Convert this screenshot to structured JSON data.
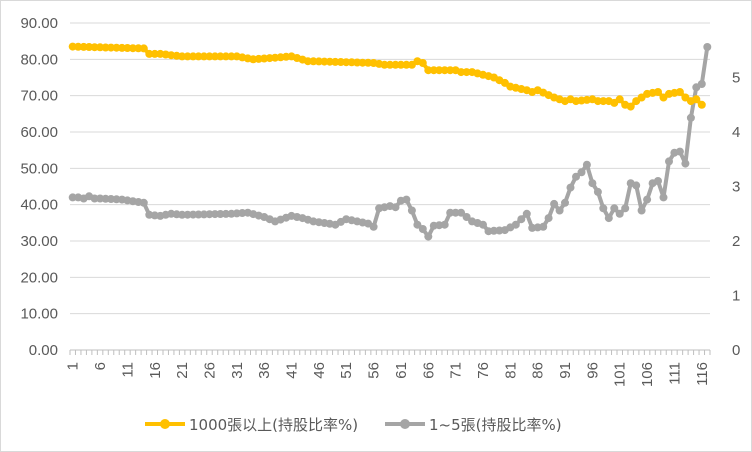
{
  "chart_data": {
    "type": "line",
    "title": "",
    "xlabel": "",
    "ylabel": "",
    "x_tick_labels": [
      "1",
      "6",
      "11",
      "16",
      "21",
      "26",
      "31",
      "36",
      "41",
      "46",
      "51",
      "56",
      "61",
      "66",
      "71",
      "76",
      "81",
      "86",
      "91",
      "96",
      "101",
      "106",
      "111",
      "116"
    ],
    "left_axis": {
      "ticks": [
        "0.00",
        "10.00",
        "20.00",
        "30.00",
        "40.00",
        "50.00",
        "60.00",
        "70.00",
        "80.00",
        "90.00"
      ],
      "ylim": [
        0,
        90
      ]
    },
    "right_axis": {
      "ticks": [
        "0",
        "1",
        "2",
        "3",
        "4",
        "5"
      ],
      "ylim": [
        0,
        6
      ]
    },
    "gridlines": true,
    "legend_position": "bottom",
    "series": [
      {
        "name": "1000張以上(持股比率%)",
        "axis": "left",
        "color": "#FFC000",
        "values_keypoints": [
          [
            1,
            83.5
          ],
          [
            14,
            83.0
          ],
          [
            15,
            81.5
          ],
          [
            17,
            81.5
          ],
          [
            21,
            80.8
          ],
          [
            31,
            80.8
          ],
          [
            34,
            80.0
          ],
          [
            41,
            80.8
          ],
          [
            44,
            79.5
          ],
          [
            49,
            79.3
          ],
          [
            56,
            79.0
          ],
          [
            58,
            78.5
          ],
          [
            63,
            78.5
          ],
          [
            64,
            79.5
          ],
          [
            65,
            79.0
          ],
          [
            66,
            77.0
          ],
          [
            71,
            77.0
          ],
          [
            72,
            76.5
          ],
          [
            74,
            76.5
          ],
          [
            78,
            75.0
          ],
          [
            80,
            73.5
          ],
          [
            81,
            72.5
          ],
          [
            84,
            71.5
          ],
          [
            85,
            71.0
          ],
          [
            86,
            71.5
          ],
          [
            89,
            69.5
          ],
          [
            91,
            68.5
          ],
          [
            92,
            69.0
          ],
          [
            93,
            68.5
          ],
          [
            96,
            69.0
          ],
          [
            97,
            68.5
          ],
          [
            99,
            68.5
          ],
          [
            100,
            68.0
          ],
          [
            101,
            69.0
          ],
          [
            102,
            67.5
          ],
          [
            103,
            67.0
          ],
          [
            104,
            68.5
          ],
          [
            105,
            69.5
          ],
          [
            106,
            70.5
          ],
          [
            108,
            71.0
          ],
          [
            109,
            69.5
          ],
          [
            110,
            70.5
          ],
          [
            112,
            71.0
          ],
          [
            113,
            69.5
          ],
          [
            114,
            68.5
          ],
          [
            115,
            69.0
          ],
          [
            116,
            67.5
          ]
        ]
      },
      {
        "name": "1~5張(持股比率%)",
        "axis": "right",
        "color": "#A5A5A5",
        "values_keypoints": [
          [
            1,
            2.8
          ],
          [
            2,
            2.8
          ],
          [
            3,
            2.78
          ],
          [
            4,
            2.82
          ],
          [
            5,
            2.78
          ],
          [
            6,
            2.78
          ],
          [
            10,
            2.76
          ],
          [
            14,
            2.7
          ],
          [
            15,
            2.48
          ],
          [
            17,
            2.46
          ],
          [
            19,
            2.5
          ],
          [
            21,
            2.48
          ],
          [
            30,
            2.5
          ],
          [
            33,
            2.52
          ],
          [
            36,
            2.44
          ],
          [
            38,
            2.36
          ],
          [
            41,
            2.46
          ],
          [
            43,
            2.42
          ],
          [
            45,
            2.36
          ],
          [
            49,
            2.3
          ],
          [
            51,
            2.4
          ],
          [
            53,
            2.36
          ],
          [
            55,
            2.32
          ],
          [
            56,
            2.26
          ],
          [
            57,
            2.6
          ],
          [
            59,
            2.64
          ],
          [
            60,
            2.62
          ],
          [
            61,
            2.74
          ],
          [
            62,
            2.76
          ],
          [
            63,
            2.56
          ],
          [
            64,
            2.3
          ],
          [
            65,
            2.22
          ],
          [
            66,
            2.08
          ],
          [
            67,
            2.28
          ],
          [
            69,
            2.3
          ],
          [
            70,
            2.52
          ],
          [
            72,
            2.52
          ],
          [
            74,
            2.36
          ],
          [
            76,
            2.3
          ],
          [
            77,
            2.18
          ],
          [
            80,
            2.2
          ],
          [
            82,
            2.3
          ],
          [
            84,
            2.5
          ],
          [
            85,
            2.24
          ],
          [
            87,
            2.26
          ],
          [
            88,
            2.42
          ],
          [
            89,
            2.68
          ],
          [
            90,
            2.56
          ],
          [
            91,
            2.7
          ],
          [
            92,
            2.98
          ],
          [
            93,
            3.18
          ],
          [
            94,
            3.26
          ],
          [
            95,
            3.4
          ],
          [
            96,
            3.06
          ],
          [
            97,
            2.9
          ],
          [
            98,
            2.6
          ],
          [
            99,
            2.42
          ],
          [
            100,
            2.6
          ],
          [
            101,
            2.5
          ],
          [
            102,
            2.6
          ],
          [
            103,
            3.06
          ],
          [
            104,
            3.02
          ],
          [
            105,
            2.56
          ],
          [
            106,
            2.76
          ],
          [
            107,
            3.06
          ],
          [
            108,
            3.1
          ],
          [
            109,
            2.8
          ],
          [
            110,
            3.46
          ],
          [
            111,
            3.62
          ],
          [
            112,
            3.64
          ],
          [
            113,
            3.42
          ],
          [
            114,
            4.26
          ],
          [
            115,
            4.82
          ],
          [
            116,
            4.88
          ],
          [
            117,
            5.56
          ]
        ]
      }
    ]
  }
}
